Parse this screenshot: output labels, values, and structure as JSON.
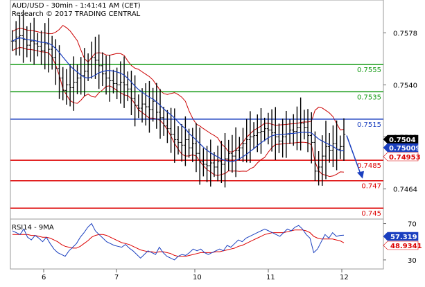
{
  "header": {
    "line1": "AUD/USD - 30min - 1:41:41 AM (CET)",
    "line2": "Research © 2017 TRADING CENTRAL"
  },
  "chart_data": [
    {
      "type": "candlestick",
      "panel": "price",
      "ylim": [
        0.7442,
        0.7602
      ],
      "y_ticks": [
        {
          "value": 0.7578,
          "label": "0.7578"
        },
        {
          "value": 0.754,
          "label": "0.7540"
        },
        {
          "value": 0.7502,
          "label": "0.7502"
        },
        {
          "value": 0.7464,
          "label": "0.7464"
        }
      ],
      "x_ticks": [
        "6",
        "7",
        "10",
        "11",
        "12"
      ],
      "series": [
        {
          "kind": "close",
          "values": [
            0.7572,
            0.7575,
            0.7576,
            0.7573,
            0.7569,
            0.7572,
            0.757,
            0.7568,
            0.7565,
            0.757,
            0.7566,
            0.756,
            0.7552,
            0.7545,
            0.7536,
            0.754,
            0.7538,
            0.7542,
            0.7545,
            0.7547,
            0.755,
            0.7555,
            0.756,
            0.7558,
            0.7554,
            0.7548,
            0.7545,
            0.7543,
            0.7541,
            0.754,
            0.7542,
            0.754,
            0.7537,
            0.753,
            0.7525,
            0.7523,
            0.7526,
            0.7524,
            0.7522,
            0.7528,
            0.752,
            0.7516,
            0.751,
            0.7508,
            0.7504,
            0.75,
            0.7498,
            0.7496,
            0.75,
            0.7494,
            0.7497,
            0.749,
            0.7484,
            0.7482,
            0.7481,
            0.7483,
            0.748,
            0.7484,
            0.7482,
            0.7486,
            0.749,
            0.7488,
            0.7492,
            0.7494,
            0.7497,
            0.75,
            0.7502,
            0.7503,
            0.7505,
            0.7506,
            0.7508,
            0.7507,
            0.7505,
            0.7502,
            0.7499,
            0.7502,
            0.7504,
            0.7507,
            0.7506,
            0.7509,
            0.7512,
            0.7509,
            0.7503,
            0.7498,
            0.7477,
            0.748,
            0.7488,
            0.7495,
            0.7492,
            0.7497,
            0.7493,
            0.7495,
            0.7504
          ]
        },
        {
          "kind": "bollinger-upper",
          "color": "#cc0000"
        },
        {
          "kind": "bollinger-lower",
          "color": "#cc0000"
        },
        {
          "kind": "moving-average",
          "color": "#1a3fbf"
        }
      ],
      "levels": [
        {
          "value": 0.7555,
          "label": "0.7555",
          "color": "#119911"
        },
        {
          "value": 0.7535,
          "label": "0.7535",
          "color": "#119911"
        },
        {
          "value": 0.7515,
          "label": "0.7515",
          "color": "#1a3fbf"
        },
        {
          "value": 0.7485,
          "label": "0.7485",
          "color": "#dd0000"
        },
        {
          "value": 0.747,
          "label": "0.747",
          "color": "#dd0000"
        },
        {
          "value": 0.745,
          "label": "0.745",
          "color": "#dd0000"
        }
      ],
      "badges": [
        {
          "value": 0.7504,
          "label": "0.7504",
          "bg": "#000000",
          "fg": "#ffffff"
        },
        {
          "value": 0.75009,
          "label": "0.75009",
          "bg": "#1a3fbf",
          "fg": "#ffffff"
        },
        {
          "value": 0.74953,
          "label": "0.74953",
          "bg": "#ffffff",
          "fg": "#dd0000"
        }
      ],
      "forecast": "down"
    },
    {
      "type": "line",
      "panel": "rsi",
      "title": "RSI14 - 9MA",
      "ylim": [
        20,
        75
      ],
      "y_ticks": [
        {
          "value": 70,
          "label": "70"
        },
        {
          "value": 30,
          "label": "30"
        }
      ],
      "series": [
        {
          "kind": "rsi",
          "color": "#1a3fbf",
          "values": [
            62,
            60,
            58,
            64,
            55,
            52,
            57,
            54,
            50,
            55,
            48,
            42,
            38,
            36,
            34,
            40,
            44,
            48,
            55,
            60,
            66,
            70,
            62,
            58,
            54,
            50,
            48,
            46,
            45,
            44,
            47,
            43,
            40,
            36,
            32,
            36,
            40,
            38,
            36,
            44,
            38,
            34,
            32,
            30,
            34,
            36,
            35,
            38,
            42,
            40,
            42,
            38,
            36,
            38,
            40,
            42,
            40,
            46,
            44,
            48,
            52,
            50,
            54,
            56,
            58,
            60,
            62,
            64,
            62,
            60,
            58,
            56,
            60,
            64,
            62,
            66,
            68,
            64,
            58,
            54,
            38,
            42,
            50,
            58,
            54,
            60,
            56,
            57,
            57.3
          ]
        },
        {
          "kind": "rsi-ma",
          "color": "#dd0000",
          "values": [
            58,
            58,
            58,
            58,
            58,
            57,
            57,
            56,
            55,
            55,
            54,
            52,
            50,
            47,
            45,
            44,
            43,
            43,
            45,
            48,
            51,
            55,
            57,
            58,
            58,
            57,
            55,
            53,
            51,
            49,
            48,
            47,
            45,
            43,
            41,
            40,
            39,
            39,
            38,
            39,
            39,
            38,
            37,
            35,
            34,
            34,
            34,
            35,
            36,
            37,
            38,
            38,
            38,
            38,
            39,
            39,
            40,
            41,
            42,
            43,
            45,
            46,
            48,
            50,
            52,
            54,
            56,
            58,
            59,
            60,
            60,
            60,
            60,
            61,
            62,
            63,
            63,
            63,
            62,
            60,
            56,
            54,
            53,
            53,
            53,
            53,
            52,
            51,
            48.9
          ]
        }
      ],
      "badges": [
        {
          "value": 57.319,
          "label": "57.319",
          "bg": "#1a3fbf",
          "fg": "#ffffff"
        },
        {
          "value": 48.9341,
          "label": "48.9341",
          "bg": "#ffffff",
          "fg": "#dd0000"
        }
      ]
    }
  ]
}
